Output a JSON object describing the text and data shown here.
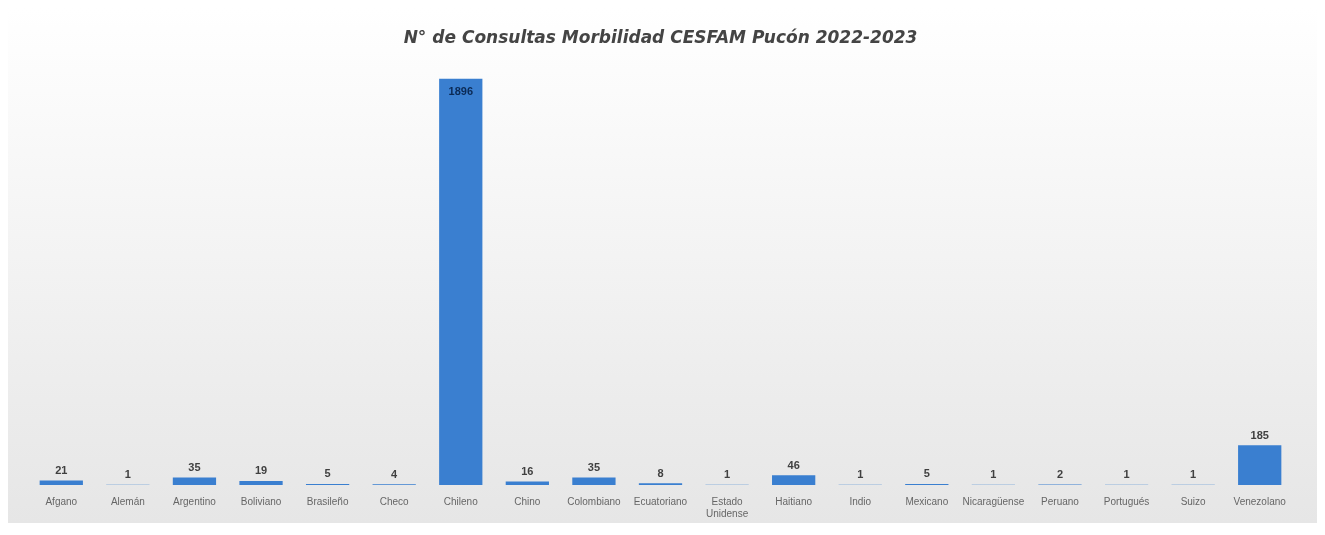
{
  "chart_data": {
    "type": "bar",
    "title": "N° de Consultas Morbilidad CESFAM Pucón 2022-2023",
    "categories": [
      "Afgano",
      "Alemán",
      "Argentino",
      "Boliviano",
      "Brasileño",
      "Checo",
      "Chileno",
      "Chino",
      "Colombiano",
      "Ecuatoriano",
      "Estado Unidense",
      "Haitiano",
      "Indio",
      "Mexicano",
      "Nicaragüense",
      "Peruano",
      "Portugués",
      "Suizo",
      "Venezolano"
    ],
    "values": [
      21,
      1,
      35,
      19,
      5,
      4,
      1896,
      16,
      35,
      8,
      1,
      46,
      1,
      5,
      1,
      2,
      1,
      1,
      185
    ],
    "color": "#3a7fd0",
    "data_labels": true,
    "grid": false,
    "legend": false
  }
}
